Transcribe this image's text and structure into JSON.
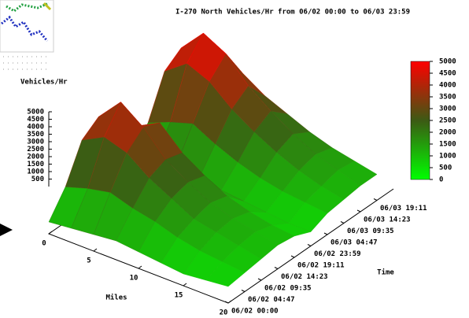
{
  "chart_data": {
    "type": "surface",
    "title": "I-270 North Vehicles/Hr from 06/02 00:00 to 06/03 23:59",
    "zlabel": "Vehicles/Hr",
    "xlabel": "Miles",
    "ylabel": "Time",
    "x": [
      0,
      2.5,
      5,
      7.5,
      10,
      12.5,
      15,
      17.5,
      20
    ],
    "y": [
      "06/02 00:00",
      "06/02 04:47",
      "06/02 09:35",
      "06/02 14:23",
      "06/02 19:11",
      "06/02 23:59",
      "06/03 04:47",
      "06/03 09:35",
      "06/03 14:23",
      "06/03 19:11"
    ],
    "z": [
      [
        500,
        600,
        700,
        800,
        700,
        600,
        500,
        600,
        700
      ],
      [
        1500,
        1800,
        2000,
        1700,
        1500,
        1200,
        1000,
        900,
        800
      ],
      [
        3000,
        3500,
        3200,
        2500,
        2000,
        1500,
        1300,
        1100,
        900
      ],
      [
        3500,
        4500,
        3800,
        2800,
        2200,
        1700,
        1400,
        1200,
        1000
      ],
      [
        2500,
        3000,
        3500,
        2600,
        2000,
        1500,
        1200,
        1000,
        900
      ],
      [
        800,
        1000,
        1200,
        1000,
        900,
        800,
        700,
        600,
        600
      ],
      [
        1800,
        2200,
        2500,
        2000,
        1600,
        1300,
        1100,
        1000,
        900
      ],
      [
        3500,
        4200,
        3800,
        3000,
        2400,
        1900,
        1500,
        1200,
        1000
      ],
      [
        4000,
        5000,
        4500,
        3500,
        2800,
        2200,
        1700,
        1400,
        1100
      ],
      [
        3000,
        3500,
        3200,
        2600,
        2200,
        1800,
        1500,
        1300,
        1100
      ]
    ],
    "xlim": [
      0,
      20
    ],
    "xticks": [
      0,
      5,
      10,
      15,
      20
    ],
    "zlim": [
      0,
      5000
    ],
    "zticks": [
      500,
      1000,
      1500,
      2000,
      2500,
      3000,
      3500,
      4000,
      4500,
      5000
    ],
    "colorbar_ticks": [
      0,
      500,
      1000,
      1500,
      2000,
      2500,
      3000,
      3500,
      4000,
      4500,
      5000
    ]
  }
}
